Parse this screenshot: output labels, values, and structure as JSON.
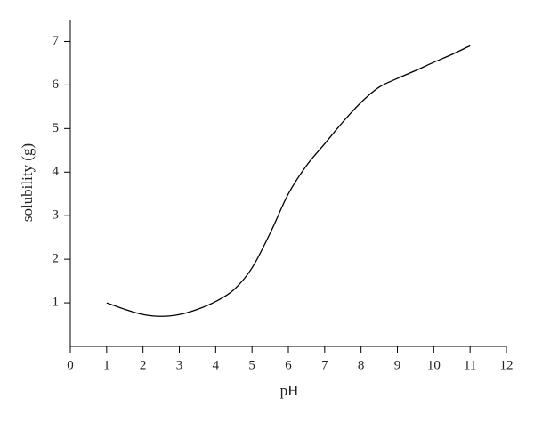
{
  "chart_data": {
    "type": "line",
    "x_label": "pH",
    "y_label": "solubility (g)",
    "x": [
      1,
      1.5,
      2,
      2.5,
      3,
      3.5,
      4,
      4.5,
      5,
      5.5,
      6,
      6.5,
      7,
      7.5,
      8,
      8.5,
      9,
      9.5,
      10,
      10.5,
      11
    ],
    "series": [
      {
        "color": "#000000",
        "values": [
          1.0,
          0.85,
          0.73,
          0.69,
          0.73,
          0.85,
          1.03,
          1.3,
          1.8,
          2.6,
          3.5,
          4.15,
          4.65,
          5.15,
          5.6,
          5.95,
          6.15,
          6.33,
          6.52,
          6.7,
          6.9
        ]
      }
    ],
    "xlim": [
      0,
      12
    ],
    "xticks": [
      0,
      1,
      2,
      3,
      4,
      5,
      6,
      7,
      8,
      9,
      10,
      11,
      12
    ],
    "ylim": [
      0,
      7.5
    ],
    "yticks": [
      1,
      2,
      3,
      4,
      5,
      6,
      7
    ]
  }
}
